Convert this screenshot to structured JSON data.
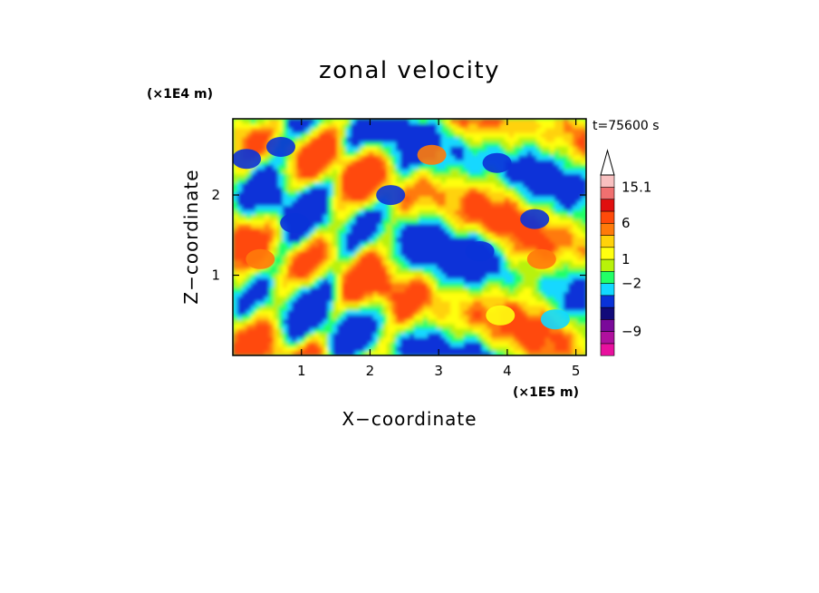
{
  "chart_data": {
    "type": "heatmap",
    "title": "zonal velocity",
    "time_label": "t=75600 s",
    "xlabel": "X−coordinate",
    "ylabel": "Z−coordinate",
    "x_unit": "(×1E5 m)",
    "y_unit": "(×1E4 m)",
    "xlim": [
      0,
      5.15
    ],
    "ylim": [
      0,
      2.95
    ],
    "x_ticks": [
      1,
      2,
      3,
      4,
      5
    ],
    "y_ticks": [
      1,
      2
    ],
    "x_tick_labels": [
      "1",
      "2",
      "3",
      "4",
      "5"
    ],
    "y_tick_labels": [
      "1",
      "2"
    ],
    "colorbar": {
      "levels": [
        {
          "color": "#e8109e"
        },
        {
          "color": "#b0109e"
        },
        {
          "color": "#7a0a9a"
        },
        {
          "color": "#120a7a"
        },
        {
          "color": "#0a32d8"
        },
        {
          "color": "#12d8ff"
        },
        {
          "color": "#22ff66"
        },
        {
          "color": "#b8f20a"
        },
        {
          "color": "#ffff10"
        },
        {
          "color": "#ffd20a"
        },
        {
          "color": "#ff7a0a"
        },
        {
          "color": "#ff4a0a"
        },
        {
          "color": "#e01010"
        },
        {
          "color": "#f07070"
        },
        {
          "color": "#f8c0c0"
        }
      ],
      "tick_labels": [
        "15.1",
        "6",
        "1",
        "−2",
        "−9"
      ]
    },
    "features": [
      {
        "x": 0.2,
        "z": 2.45,
        "level": 4
      },
      {
        "x": 0.7,
        "z": 2.6,
        "level": 4
      },
      {
        "x": 0.9,
        "z": 1.65,
        "level": 4
      },
      {
        "x": 2.3,
        "z": 2.0,
        "level": 4
      },
      {
        "x": 3.6,
        "z": 1.3,
        "level": 4
      },
      {
        "x": 3.85,
        "z": 2.4,
        "level": 4
      },
      {
        "x": 4.4,
        "z": 1.7,
        "level": 4
      },
      {
        "x": 4.5,
        "z": 1.2,
        "level": 10
      },
      {
        "x": 2.9,
        "z": 2.5,
        "level": 10
      },
      {
        "x": 3.9,
        "z": 0.5,
        "level": 8
      },
      {
        "x": 4.7,
        "z": 0.45,
        "level": 5
      },
      {
        "x": 0.4,
        "z": 1.2,
        "level": 10
      }
    ]
  }
}
